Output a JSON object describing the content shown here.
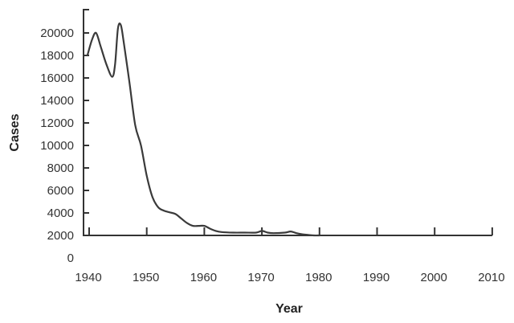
{
  "chart_data": {
    "type": "line",
    "title": "",
    "xlabel": "Year",
    "ylabel": "Cases",
    "x_ticks": [
      "1940",
      "1950",
      "1960",
      "1970",
      "1980",
      "1990",
      "2000",
      "2010"
    ],
    "y_ticks": [
      "0",
      "2000",
      "4000",
      "6000",
      "8000",
      "10000",
      "12000",
      "14000",
      "16000",
      "18000",
      "20000"
    ],
    "xlim": [
      1940,
      2010
    ],
    "ylim": [
      2000,
      21000
    ],
    "grid": false,
    "legend": null,
    "series": [
      {
        "name": "Cases",
        "x": [
          1939.7,
          1940.5,
          1941.2,
          1942,
          1943,
          1944,
          1944.5,
          1945,
          1945.5,
          1946,
          1947,
          1948,
          1949,
          1950,
          1951,
          1952,
          1953,
          1954,
          1955,
          1956,
          1957,
          1958,
          1959,
          1960,
          1961,
          1962,
          1963,
          1965,
          1967,
          1969,
          1970,
          1971,
          1972,
          1974,
          1975,
          1976,
          1977,
          1978,
          1979,
          1980
        ],
        "y": [
          18000,
          19400,
          20000,
          18800,
          17200,
          16100,
          17200,
          20400,
          20700,
          19200,
          15600,
          11800,
          10000,
          7300,
          5400,
          4500,
          4200,
          4050,
          3900,
          3500,
          3100,
          2850,
          2850,
          2850,
          2600,
          2400,
          2300,
          2250,
          2250,
          2250,
          2400,
          2250,
          2200,
          2250,
          2350,
          2200,
          2100,
          2050,
          2000,
          2000
        ]
      }
    ]
  }
}
